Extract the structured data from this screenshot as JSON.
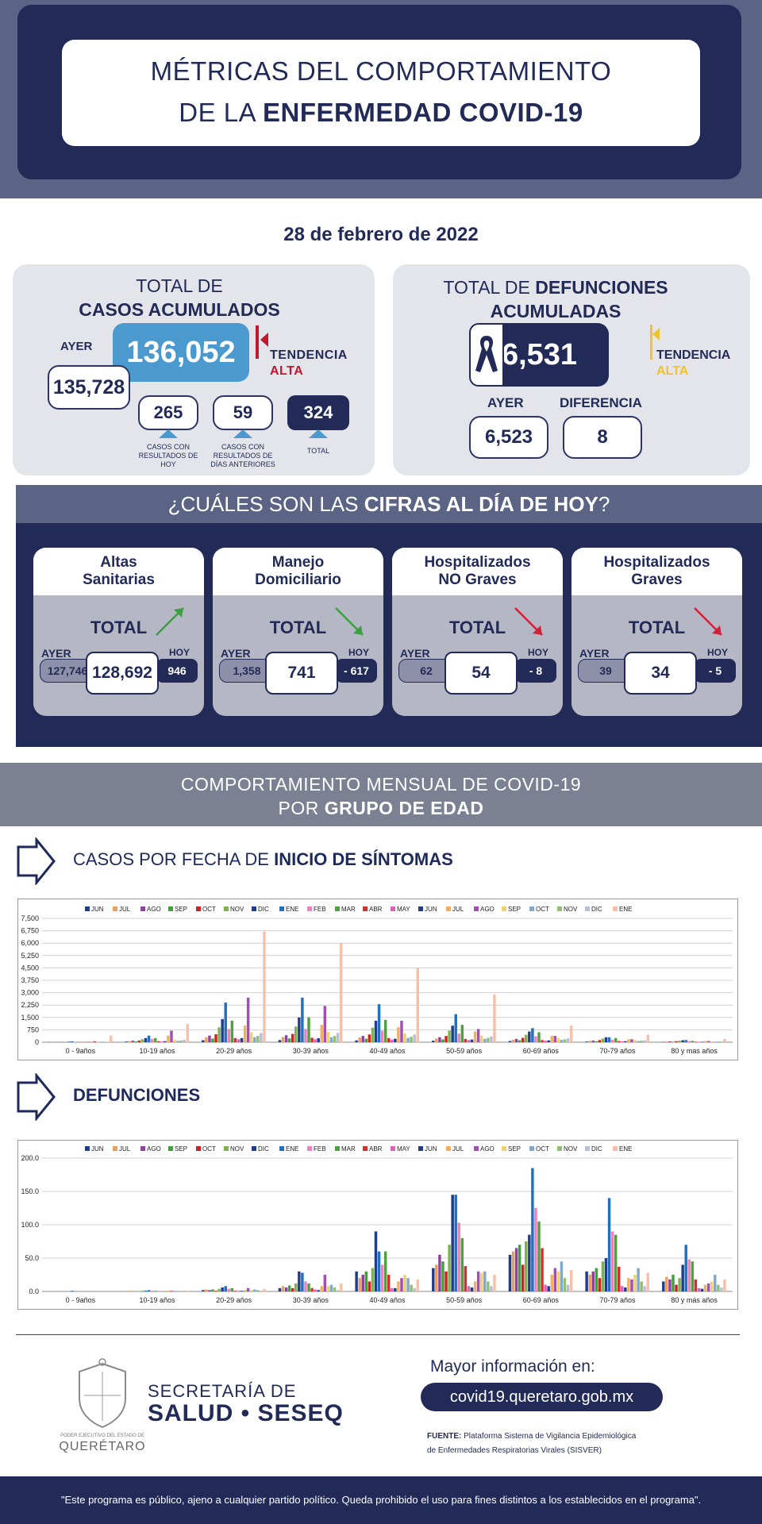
{
  "header": {
    "title_line1": "MÉTRICAS DEL COMPORTAMIENTO",
    "title_line2_pre": "DE LA",
    "title_line2_bold": "ENFERMEDAD COVID-19"
  },
  "date": "28 de febrero de 2022",
  "cases": {
    "title_line1": "TOTAL DE",
    "title_line2": "CASOS ACUMULADOS",
    "total": "136,052",
    "ayer_label": "AYER",
    "ayer_value": "135,728",
    "tendencia_label": "TENDENCIA",
    "tendencia_value": "ALTA",
    "today_value": "265",
    "today_caption": "CASOS CON RESULTADOS DE HOY",
    "prev_value": "59",
    "prev_caption": "CASOS CON RESULTADOS DE DÍAS ANTERIORES",
    "sum_value": "324",
    "sum_caption": "TOTAL"
  },
  "deaths": {
    "title_pre": "TOTAL DE",
    "title_bold1": "DEFUNCIONES",
    "title_bold2": "ACUMULADAS",
    "total": "6,531",
    "tendencia_label": "TENDENCIA",
    "tendencia_value": "ALTA",
    "ayer_label": "AYER",
    "ayer_value": "6,523",
    "diff_label": "DIFERENCIA",
    "diff_value": "8"
  },
  "today": {
    "title_pre": "¿CUÁLES SON LAS",
    "title_bold": "CIFRAS AL DÍA DE HOY",
    "title_post": "?",
    "total_label": "TOTAL",
    "ayer_label": "AYER",
    "hoy_label": "HOY",
    "cards": [
      {
        "line1": "Altas",
        "line2": "Sanitarias",
        "ayer": "127,746",
        "value": "128,692",
        "hoy": "946",
        "trend": "up"
      },
      {
        "line1": "Manejo",
        "line2": "Domiciliario",
        "ayer": "1,358",
        "value": "741",
        "hoy": "- 617",
        "trend": "down"
      },
      {
        "line1": "Hospitalizados",
        "line2": "NO Graves",
        "ayer": "62",
        "value": "54",
        "hoy": "- 8",
        "trend": "down-red"
      },
      {
        "line1": "Hospitalizados",
        "line2": "Graves",
        "ayer": "39",
        "value": "34",
        "hoy": "- 5",
        "trend": "down-red"
      }
    ]
  },
  "monthly": {
    "line1": "COMPORTAMIENTO MENSUAL DE COVID-19",
    "line2_pre": "POR",
    "line2_bold": "GRUPO DE EDAD"
  },
  "sections": {
    "cases_pre": "CASOS POR FECHA DE",
    "cases_bold": "INICIO  DE SÍNTOMAS",
    "deaths_bold": "DEFUNCIONES"
  },
  "colors": {
    "navy": "#222b57",
    "slate": "#5b6485",
    "accent_blue": "#4a9ad0",
    "alert_red": "#c0182e",
    "alert_yellow": "#f2c12e"
  },
  "chart_data": [
    {
      "type": "bar",
      "title": "",
      "categories": [
        "0 - 9años",
        "10-19 años",
        "20-29 años",
        "30-39 años",
        "40-49 años",
        "50-59 años",
        "60-69 años",
        "70-79 años",
        "80 y mas años"
      ],
      "ylim": [
        0,
        7500
      ],
      "yticks": [
        "0",
        "750",
        "1,500",
        "2,250",
        "3,000",
        "3,750",
        "4,500",
        "5,250",
        "6,000",
        "6,750",
        "7,500"
      ],
      "legend_position": "top",
      "series": [
        {
          "name": "JUN",
          "color": "#1f3d8c",
          "values": [
            5,
            40,
            120,
            130,
            110,
            90,
            70,
            40,
            20
          ]
        },
        {
          "name": "JUL",
          "color": "#e8a060",
          "values": [
            8,
            70,
            300,
            310,
            280,
            220,
            150,
            80,
            40
          ]
        },
        {
          "name": "AGO",
          "color": "#9040a0",
          "values": [
            10,
            90,
            400,
            420,
            380,
            300,
            200,
            100,
            50
          ]
        },
        {
          "name": "SEP",
          "color": "#40a040",
          "values": [
            6,
            50,
            220,
            230,
            210,
            170,
            120,
            60,
            30
          ]
        },
        {
          "name": "OCT",
          "color": "#d02020",
          "values": [
            10,
            100,
            480,
            500,
            470,
            380,
            260,
            130,
            60
          ]
        },
        {
          "name": "NOV",
          "color": "#80b050",
          "values": [
            20,
            180,
            900,
            950,
            880,
            700,
            450,
            220,
            90
          ]
        },
        {
          "name": "DIC",
          "color": "#1f3d8c",
          "values": [
            30,
            250,
            1400,
            1500,
            1300,
            1000,
            650,
            300,
            120
          ]
        },
        {
          "name": "ENE",
          "color": "#2070c0",
          "values": [
            50,
            400,
            2400,
            2700,
            2300,
            1700,
            850,
            300,
            130
          ]
        },
        {
          "name": "FEB",
          "color": "#f080c0",
          "values": [
            20,
            200,
            800,
            800,
            700,
            520,
            360,
            150,
            70
          ]
        },
        {
          "name": "MAR",
          "color": "#50a040",
          "values": [
            25,
            250,
            1300,
            1500,
            1350,
            1050,
            600,
            250,
            80
          ]
        },
        {
          "name": "ABR",
          "color": "#d03030",
          "values": [
            8,
            60,
            250,
            270,
            250,
            200,
            130,
            70,
            30
          ]
        },
        {
          "name": "MAY",
          "color": "#e060c0",
          "values": [
            5,
            40,
            180,
            180,
            160,
            130,
            90,
            50,
            20
          ]
        },
        {
          "name": "JUN",
          "color": "#1f3d8c",
          "values": [
            8,
            60,
            250,
            240,
            210,
            160,
            110,
            60,
            25
          ]
        },
        {
          "name": "JUL",
          "color": "#f0b060",
          "values": [
            40,
            400,
            1000,
            1050,
            900,
            650,
            380,
            180,
            70
          ]
        },
        {
          "name": "AGO",
          "color": "#a050b0",
          "values": [
            60,
            700,
            2700,
            2200,
            1300,
            800,
            380,
            180,
            70
          ]
        },
        {
          "name": "SEP",
          "color": "#f0d070",
          "values": [
            20,
            150,
            600,
            620,
            530,
            400,
            260,
            130,
            60
          ]
        },
        {
          "name": "OCT",
          "color": "#80a8d0",
          "values": [
            10,
            80,
            300,
            300,
            260,
            200,
            140,
            70,
            30
          ]
        },
        {
          "name": "NOV",
          "color": "#90c070",
          "values": [
            15,
            100,
            380,
            380,
            330,
            260,
            170,
            90,
            40
          ]
        },
        {
          "name": "DIC",
          "color": "#b8c0d8",
          "values": [
            20,
            150,
            550,
            560,
            470,
            350,
            230,
            110,
            50
          ]
        },
        {
          "name": "ENE",
          "color": "#f8c0a8",
          "values": [
            400,
            1100,
            6700,
            6000,
            4500,
            2900,
            1000,
            450,
            200
          ]
        }
      ]
    },
    {
      "type": "bar",
      "title": "",
      "categories": [
        "0 - 9años",
        "10-19 años",
        "20-29 años",
        "30-39 años",
        "40-49 años",
        "50-59 años",
        "60-69 años",
        "70-79 años",
        "80 y más años"
      ],
      "ylim": [
        0,
        200
      ],
      "yticks": [
        "0.0",
        "50.0",
        "100.0",
        "150.0",
        "200.0"
      ],
      "legend_position": "top",
      "series": [
        {
          "name": "JUN",
          "color": "#1f3d8c",
          "values": [
            0,
            0,
            2,
            5,
            30,
            35,
            55,
            30,
            15
          ]
        },
        {
          "name": "JUL",
          "color": "#e8a060",
          "values": [
            0,
            1,
            3,
            8,
            20,
            40,
            60,
            25,
            22
          ]
        },
        {
          "name": "AGO",
          "color": "#9040a0",
          "values": [
            0,
            0,
            2,
            6,
            25,
            55,
            65,
            30,
            18
          ]
        },
        {
          "name": "SEP",
          "color": "#40a040",
          "values": [
            0,
            0,
            3,
            9,
            30,
            45,
            70,
            35,
            25
          ]
        },
        {
          "name": "OCT",
          "color": "#d02020",
          "values": [
            0,
            0,
            1,
            5,
            15,
            30,
            40,
            20,
            10
          ]
        },
        {
          "name": "NOV",
          "color": "#80b050",
          "values": [
            0,
            1,
            4,
            12,
            35,
            70,
            75,
            45,
            20
          ]
        },
        {
          "name": "DIC",
          "color": "#1f3d8c",
          "values": [
            0,
            1,
            6,
            30,
            90,
            145,
            85,
            50,
            40
          ]
        },
        {
          "name": "ENE",
          "color": "#2070c0",
          "values": [
            1,
            2,
            8,
            28,
            60,
            145,
            185,
            140,
            70
          ]
        },
        {
          "name": "FEB",
          "color": "#f080c0",
          "values": [
            0,
            1,
            4,
            15,
            40,
            103,
            125,
            90,
            48
          ]
        },
        {
          "name": "MAR",
          "color": "#50a040",
          "values": [
            0,
            1,
            5,
            12,
            60,
            80,
            105,
            85,
            45
          ]
        },
        {
          "name": "ABR",
          "color": "#d03030",
          "values": [
            0,
            0,
            1,
            5,
            25,
            38,
            65,
            37,
            18
          ]
        },
        {
          "name": "MAY",
          "color": "#e060c0",
          "values": [
            0,
            0,
            1,
            3,
            5,
            8,
            10,
            8,
            5
          ]
        },
        {
          "name": "JUN",
          "color": "#1f3d8c",
          "values": [
            0,
            0,
            1,
            2,
            5,
            6,
            8,
            6,
            4
          ]
        },
        {
          "name": "JUL",
          "color": "#f0b060",
          "values": [
            0,
            1,
            2,
            8,
            15,
            15,
            25,
            20,
            10
          ]
        },
        {
          "name": "AGO",
          "color": "#a050b0",
          "values": [
            0,
            1,
            5,
            25,
            20,
            30,
            35,
            18,
            12
          ]
        },
        {
          "name": "SEP",
          "color": "#f0d070",
          "values": [
            0,
            0,
            2,
            8,
            25,
            28,
            30,
            25,
            15
          ]
        },
        {
          "name": "OCT",
          "color": "#80a8d0",
          "values": [
            0,
            0,
            3,
            10,
            20,
            30,
            45,
            35,
            25
          ]
        },
        {
          "name": "NOV",
          "color": "#90c070",
          "values": [
            0,
            0,
            2,
            6,
            10,
            15,
            20,
            15,
            10
          ]
        },
        {
          "name": "DIC",
          "color": "#b8c0d8",
          "values": [
            0,
            0,
            1,
            2,
            5,
            8,
            10,
            8,
            6
          ]
        },
        {
          "name": "ENE",
          "color": "#f8c0a8",
          "values": [
            0,
            1,
            4,
            12,
            18,
            25,
            32,
            28,
            18
          ]
        }
      ]
    }
  ],
  "footer": {
    "org_line1": "SECRETARÍA DE",
    "org_line2": "SALUD • SESEQ",
    "seal_caption": "PODER EJECUTIVO DEL ESTADO DE",
    "seal_state": "QUERÉTARO",
    "info_label": "Mayor información en:",
    "url": "covid19.queretaro.gob.mx",
    "source_label": "FUENTE:",
    "source_text": "Plataforma Sistema  de Vigilancia Epidemiológica",
    "source_text2": "de Enfermedades Respiratorias Virales (SISVER)",
    "disclaimer": "\"Este programa es público, ajeno a cualquier partido político. Queda prohibido el uso para fines distintos a los establecidos en el programa\"."
  }
}
